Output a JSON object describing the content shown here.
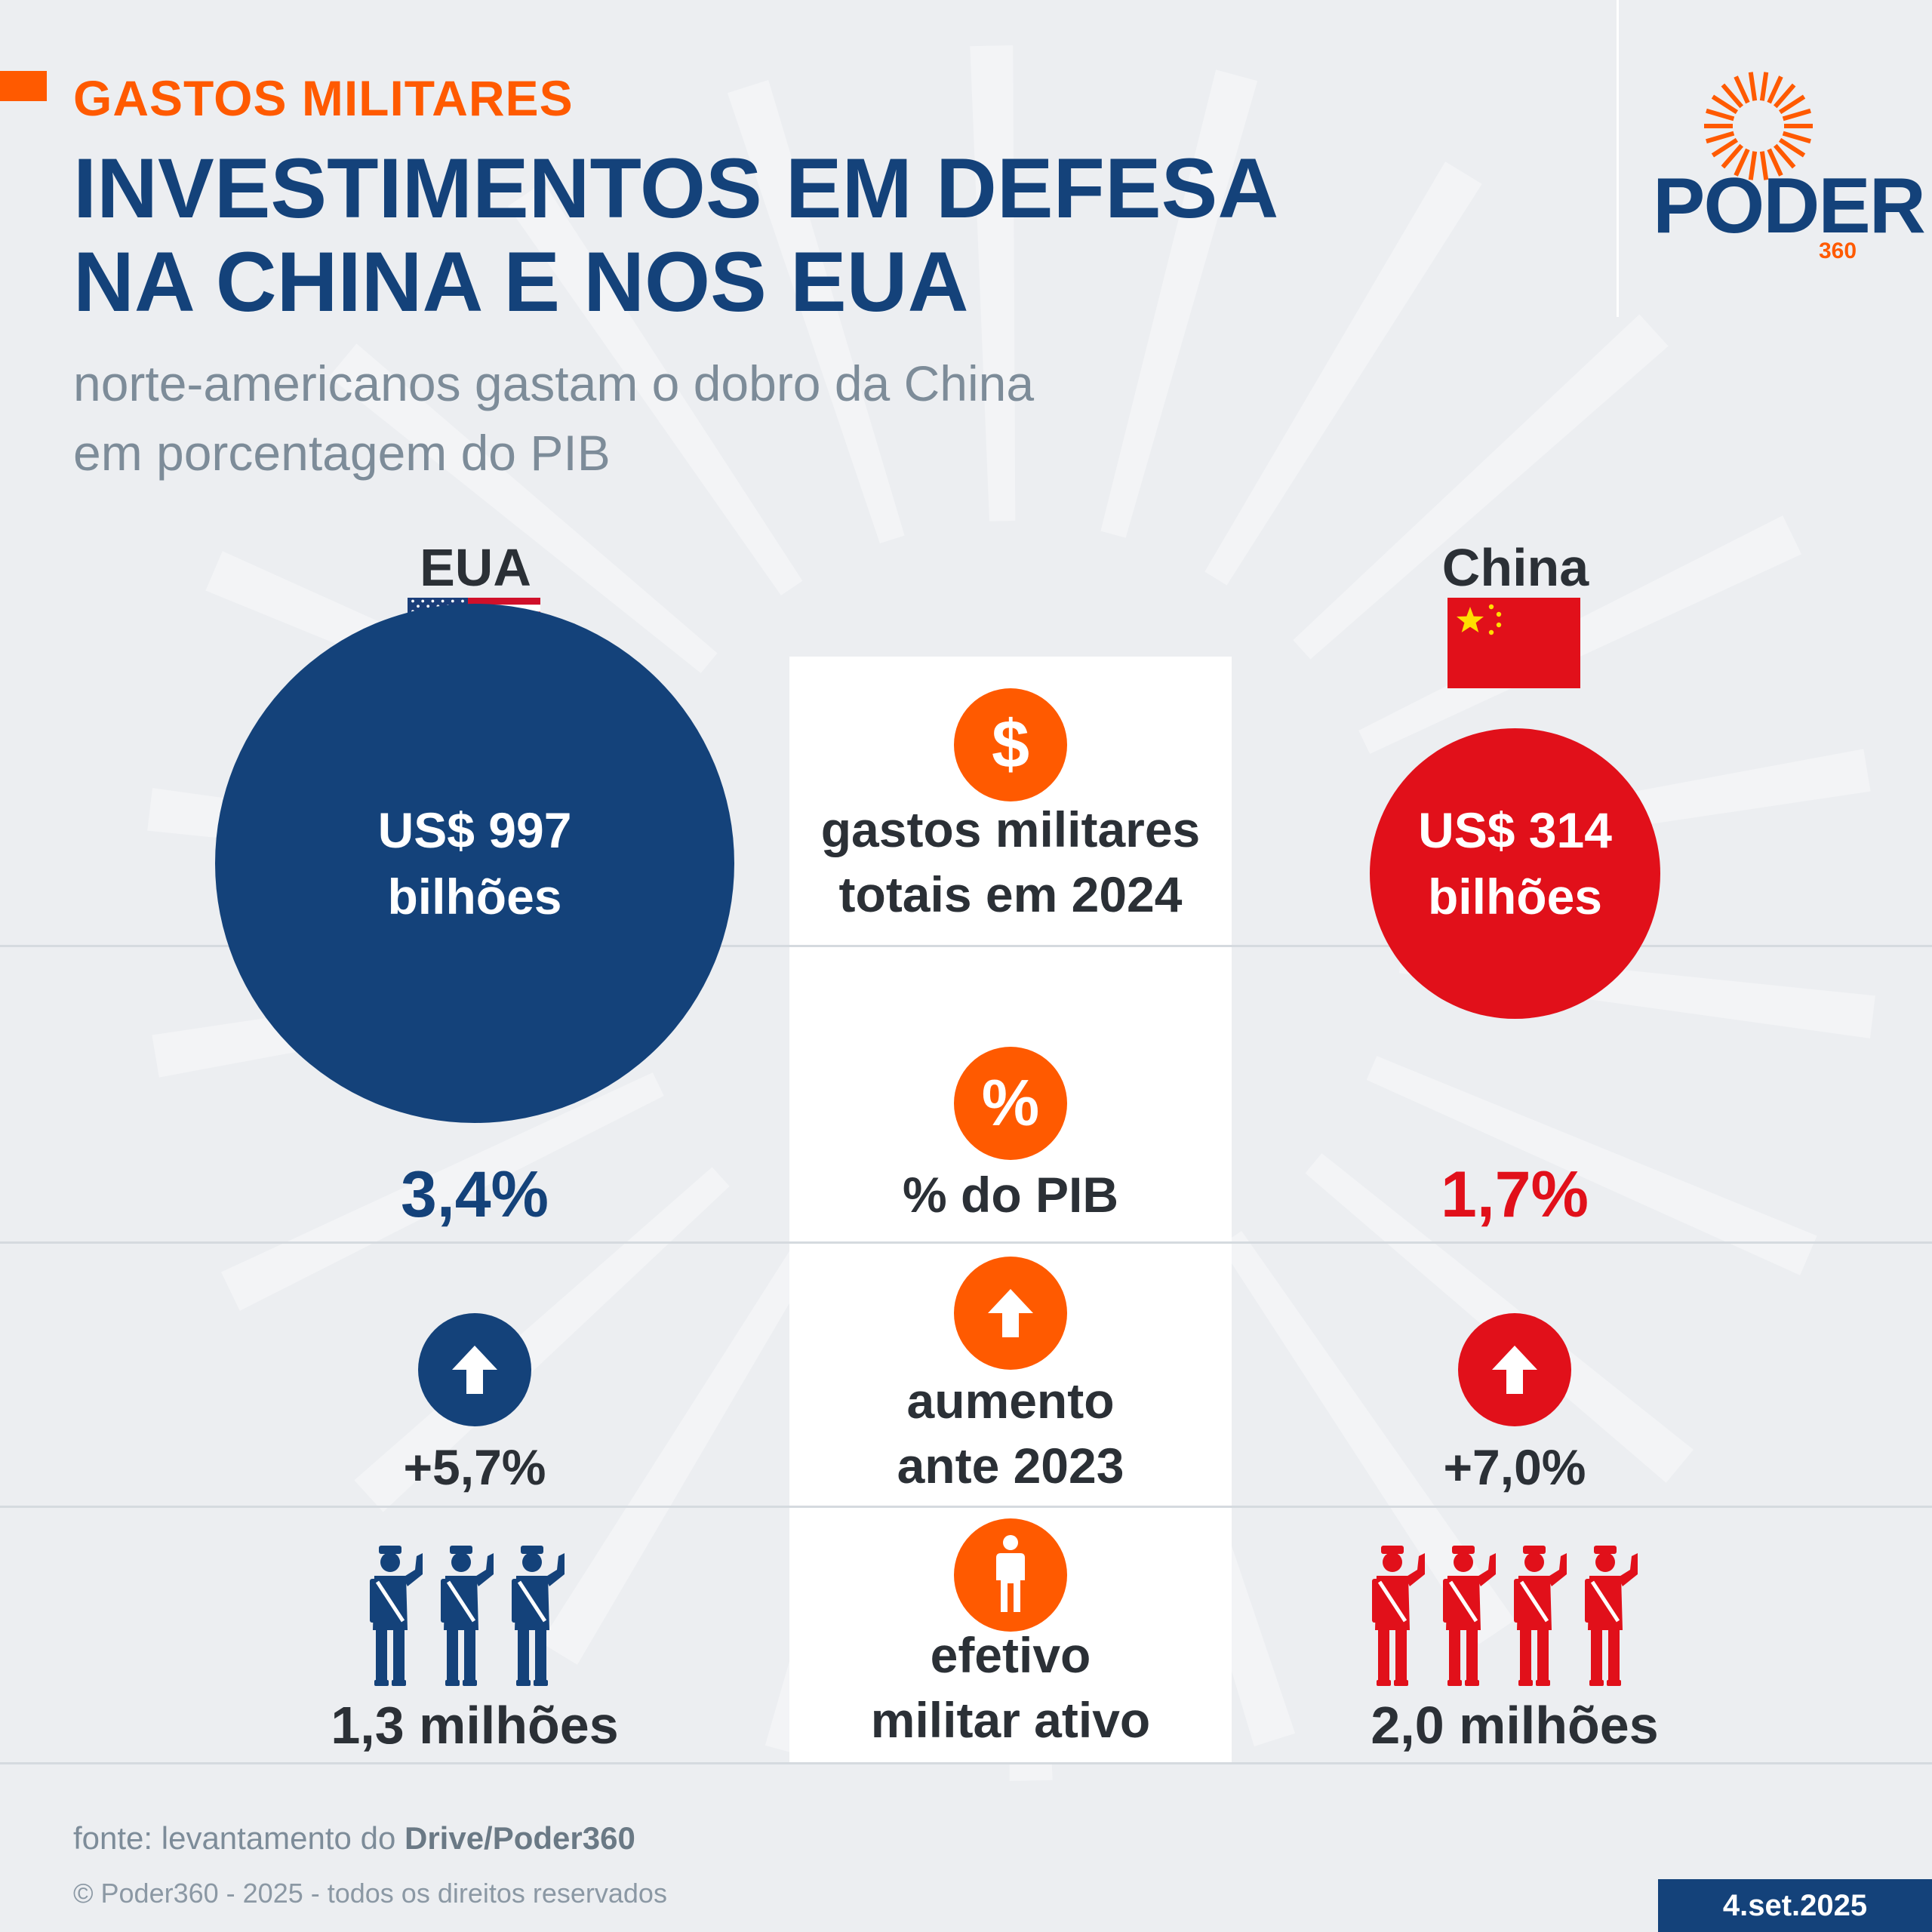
{
  "header": {
    "kicker": "GASTOS MILITARES",
    "title_line1": "INVESTIMENTOS EM DEFESA",
    "title_line2": "NA CHINA E NOS EUA",
    "subtitle_line1": "norte-americanos gastam o dobro da China",
    "subtitle_line2": "em porcentagem do PIB"
  },
  "logo": {
    "word": "PODER",
    "number": "360"
  },
  "colors": {
    "accent": "#ff5a00",
    "usa": "#14427a",
    "china": "#e1101a"
  },
  "countries": {
    "usa": {
      "name": "EUA",
      "flag": "usa-flag",
      "spending_line1": "US$ 997",
      "spending_line2": "bilhões",
      "gdp_share": "3,4%",
      "increase": "+5,7%",
      "troops": "1,3 milhões"
    },
    "china": {
      "name": "China",
      "flag": "china-flag",
      "spending_line1": "US$ 314",
      "spending_line2": "bilhões",
      "gdp_share": "1,7%",
      "increase": "+7,0%",
      "troops": "2,0 milhões"
    }
  },
  "metrics": {
    "spending_line1": "gastos militares",
    "spending_line2": "totais em 2024",
    "gdp": "% do PIB",
    "increase_line1": "aumento",
    "increase_line2": "ante 2023",
    "troops_line1": "efetivo",
    "troops_line2": "militar ativo",
    "icons": [
      "dollar-icon",
      "percent-icon",
      "arrow-up-icon",
      "person-icon"
    ]
  },
  "footer": {
    "source_prefix": "fonte: levantamento do ",
    "source_bold": "Drive/Poder360",
    "copyright": "© Poder360 - 2025 - todos os direitos reservados",
    "date": "4.set.2025"
  }
}
